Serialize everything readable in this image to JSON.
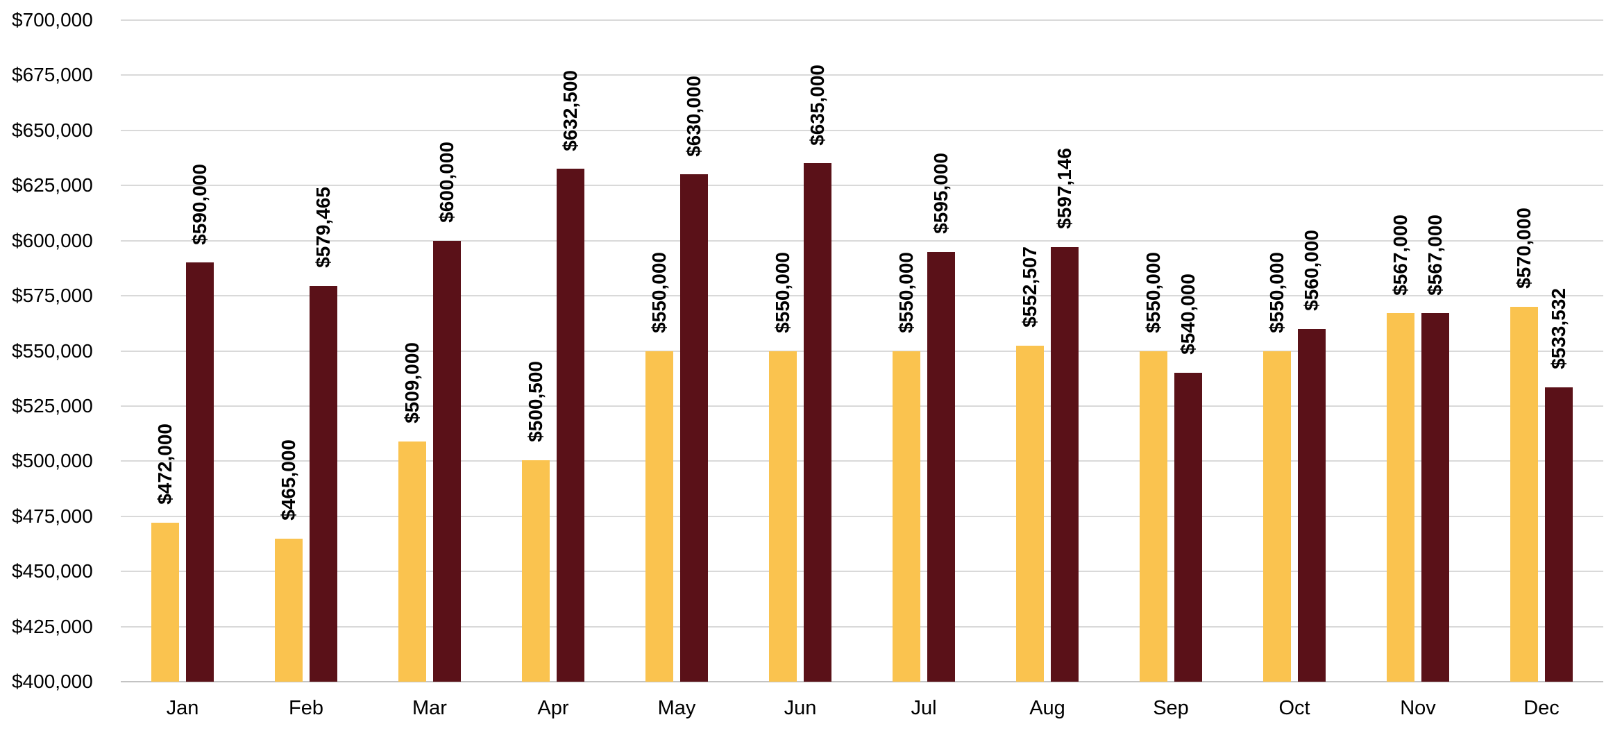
{
  "chart_data": {
    "type": "bar",
    "title": "",
    "legend": "none",
    "grid": true,
    "categories": [
      "Jan",
      "Feb",
      "Mar",
      "Apr",
      "May",
      "Jun",
      "Jul",
      "Aug",
      "Sep",
      "Oct",
      "Nov",
      "Dec"
    ],
    "series": [
      {
        "name": "series_1_gold",
        "color": "#FAC34F",
        "values": [
          472000,
          465000,
          509000,
          500500,
          550000,
          550000,
          550000,
          552507,
          550000,
          550000,
          567000,
          570000
        ],
        "labels": [
          "$472,000",
          "$465,000",
          "$509,000",
          "$500,500",
          "$550,000",
          "$550,000",
          "$550,000",
          "$552,507",
          "$550,000",
          "$550,000",
          "$567,000",
          "$570,000"
        ]
      },
      {
        "name": "series_2_maroon",
        "color": "#5A1118",
        "values": [
          590000,
          579465,
          600000,
          632500,
          630000,
          635000,
          595000,
          597146,
          540000,
          560000,
          567000,
          533532
        ],
        "labels": [
          "$590,000",
          "$579,465",
          "$600,000",
          "$632,500",
          "$630,000",
          "$635,000",
          "$595,000",
          "$597,146",
          "$540,000",
          "$560,000",
          "$567,000",
          "$533,532"
        ]
      }
    ],
    "ylim": [
      400000,
      700000
    ],
    "ytick_step": 25000,
    "ytick_labels": [
      "$400,000",
      "$425,000",
      "$450,000",
      "$475,000",
      "$500,000",
      "$525,000",
      "$550,000",
      "$575,000",
      "$600,000",
      "$625,000",
      "$650,000",
      "$675,000",
      "$700,000"
    ]
  }
}
